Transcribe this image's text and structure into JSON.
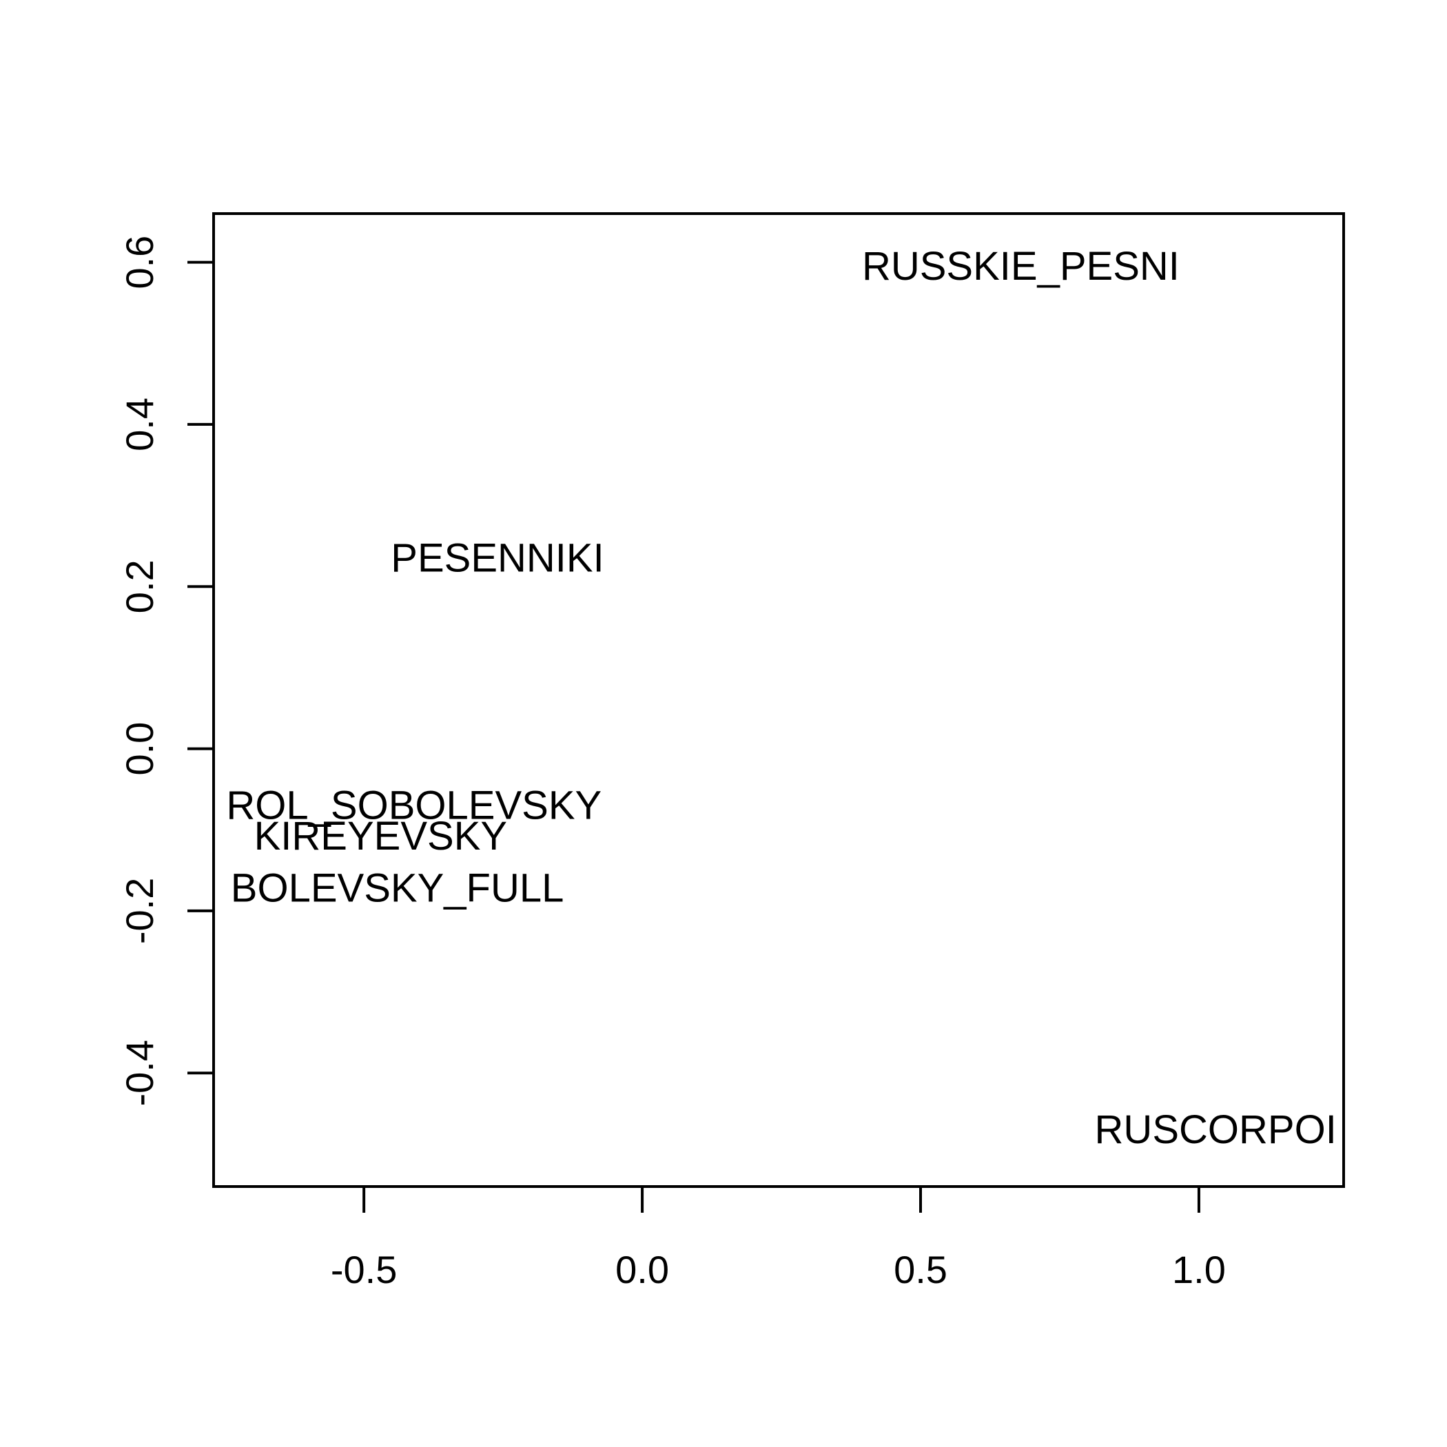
{
  "chart_data": {
    "type": "scatter",
    "title": "",
    "xlabel": "",
    "ylabel": "",
    "xlim": [
      -0.77,
      1.26
    ],
    "ylim": [
      -0.54,
      0.66
    ],
    "x_ticks": [
      -0.5,
      0.0,
      0.5,
      1.0
    ],
    "x_tick_labels": [
      "-0.5",
      "0.0",
      "0.5",
      "1.0"
    ],
    "y_ticks": [
      -0.4,
      -0.2,
      0.0,
      0.2,
      0.4,
      0.6
    ],
    "y_tick_labels": [
      "-0.4",
      "-0.2",
      "0.0",
      "0.2",
      "0.4",
      "0.6"
    ],
    "grid": false,
    "points": [
      {
        "label": "RUSSKIE_PESNI",
        "x": 0.68,
        "y": 0.595
      },
      {
        "label": "PESENNIKI",
        "x": -0.26,
        "y": 0.235
      },
      {
        "label": "ROL_SOBOLEVSKY",
        "x": -0.41,
        "y": -0.07
      },
      {
        "label": "KIREYEVSKY",
        "x": -0.47,
        "y": -0.108
      },
      {
        "label": "BOLEVSKY_FULL",
        "x": -0.44,
        "y": -0.172
      },
      {
        "label": "RUSCORPOI",
        "x": 1.03,
        "y": -0.47
      }
    ]
  }
}
